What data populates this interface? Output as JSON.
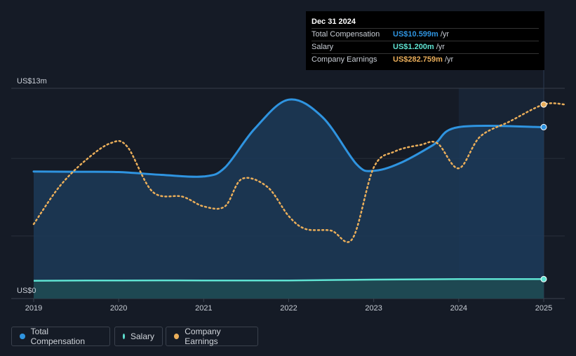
{
  "colors": {
    "total": "#2f94e0",
    "salary": "#5fe3d2",
    "earnings": "#eaae5a",
    "grid": "#3a414d",
    "text": "#c8cdd5"
  },
  "tooltip": {
    "date": "Dec 31 2024",
    "rows": [
      {
        "label": "Total Compensation",
        "value": "US$10.599m",
        "unit": "/yr",
        "color": "#2f94e0"
      },
      {
        "label": "Salary",
        "value": "US$1.200m",
        "unit": "/yr",
        "color": "#5fe3d2"
      },
      {
        "label": "Company Earnings",
        "value": "US$282.759m",
        "unit": "/yr",
        "color": "#eaae5a"
      }
    ]
  },
  "legend": [
    {
      "label": "Total Compensation",
      "color": "#2f94e0"
    },
    {
      "label": "Salary",
      "color": "#5fe3d2"
    },
    {
      "label": "Company Earnings",
      "color": "#eaae5a"
    }
  ],
  "chart_data": {
    "type": "line",
    "y_axis_labels": {
      "top": "US$13m",
      "bottom": "US$0"
    },
    "ylim": [
      0,
      13
    ],
    "xlim": [
      2019,
      2025.25
    ],
    "x_ticks": [
      "2019",
      "2020",
      "2021",
      "2022",
      "2023",
      "2024",
      "2025"
    ],
    "highlight_range": [
      2024,
      2025
    ],
    "series": [
      {
        "name": "Total Compensation",
        "unit": "US$m",
        "points": [
          [
            2019.0,
            7.85
          ],
          [
            2019.5,
            7.84
          ],
          [
            2020.0,
            7.82
          ],
          [
            2020.5,
            7.65
          ],
          [
            2021.0,
            7.55
          ],
          [
            2021.25,
            8.1
          ],
          [
            2021.6,
            10.5
          ],
          [
            2022.0,
            12.3
          ],
          [
            2022.4,
            11.2
          ],
          [
            2022.8,
            8.3
          ],
          [
            2023.0,
            7.9
          ],
          [
            2023.3,
            8.35
          ],
          [
            2023.7,
            9.5
          ],
          [
            2024.0,
            10.599
          ],
          [
            2025.0,
            10.599
          ]
        ]
      },
      {
        "name": "Salary",
        "unit": "US$m",
        "points": [
          [
            2019.0,
            1.1
          ],
          [
            2020.0,
            1.12
          ],
          [
            2021.0,
            1.12
          ],
          [
            2022.0,
            1.12
          ],
          [
            2023.0,
            1.17
          ],
          [
            2024.0,
            1.2
          ],
          [
            2025.0,
            1.2
          ]
        ]
      },
      {
        "name": "Company Earnings",
        "unit": "relative (secondary scale, not shown)",
        "extends_to": 2025.25,
        "points": [
          [
            2019.0,
            4.6
          ],
          [
            2019.3,
            6.9
          ],
          [
            2019.6,
            8.5
          ],
          [
            2019.9,
            9.6
          ],
          [
            2020.1,
            9.4
          ],
          [
            2020.4,
            6.6
          ],
          [
            2020.75,
            6.3
          ],
          [
            2021.0,
            5.7
          ],
          [
            2021.25,
            5.7
          ],
          [
            2021.45,
            7.4
          ],
          [
            2021.75,
            6.9
          ],
          [
            2022.0,
            5.1
          ],
          [
            2022.2,
            4.3
          ],
          [
            2022.5,
            4.2
          ],
          [
            2022.75,
            3.7
          ],
          [
            2023.0,
            8.1
          ],
          [
            2023.25,
            9.1
          ],
          [
            2023.55,
            9.5
          ],
          [
            2023.75,
            9.6
          ],
          [
            2024.0,
            8.05
          ],
          [
            2024.25,
            10.0
          ],
          [
            2024.6,
            10.95
          ],
          [
            2025.0,
            12.0
          ],
          [
            2025.25,
            12.0
          ]
        ]
      }
    ]
  }
}
